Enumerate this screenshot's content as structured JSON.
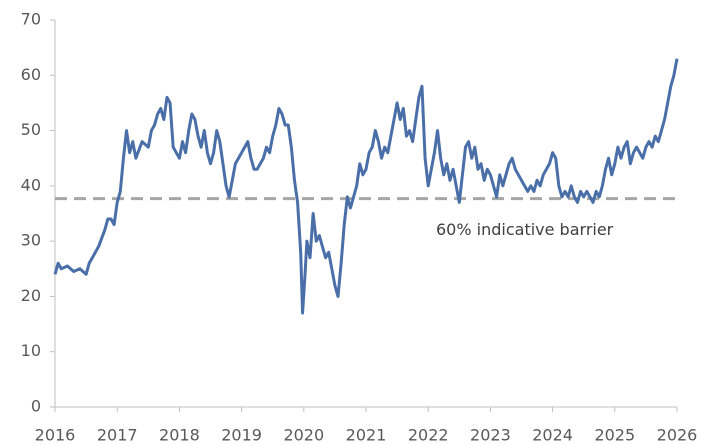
{
  "chart_data": {
    "type": "line",
    "xlim": [
      2016,
      2026
    ],
    "xticks": [
      2016,
      2017,
      2018,
      2019,
      2020,
      2021,
      2022,
      2023,
      2024,
      2025,
      2026
    ],
    "ylim": [
      0,
      70
    ],
    "yticks": [
      0,
      10,
      20,
      30,
      40,
      50,
      60,
      70
    ],
    "reference_line": {
      "value": 37.7,
      "label": "60% indicative barrier",
      "color": "#a6a6a6"
    },
    "x": [
      2016.0,
      2016.05,
      2016.1,
      2016.2,
      2016.3,
      2016.4,
      2016.5,
      2016.55,
      2016.6,
      2016.7,
      2016.8,
      2016.85,
      2016.9,
      2016.95,
      2017.0,
      2017.05,
      2017.1,
      2017.15,
      2017.2,
      2017.25,
      2017.3,
      2017.4,
      2017.5,
      2017.55,
      2017.6,
      2017.65,
      2017.7,
      2017.75,
      2017.8,
      2017.85,
      2017.9,
      2017.95,
      2018.0,
      2018.05,
      2018.1,
      2018.15,
      2018.2,
      2018.25,
      2018.3,
      2018.35,
      2018.4,
      2018.45,
      2018.5,
      2018.55,
      2018.6,
      2018.65,
      2018.7,
      2018.75,
      2018.8,
      2018.85,
      2018.9,
      2018.95,
      2019.0,
      2019.05,
      2019.1,
      2019.15,
      2019.2,
      2019.25,
      2019.3,
      2019.35,
      2019.4,
      2019.45,
      2019.5,
      2019.55,
      2019.6,
      2019.65,
      2019.7,
      2019.75,
      2019.8,
      2019.85,
      2019.9,
      2019.95,
      2019.98,
      2020.02,
      2020.05,
      2020.1,
      2020.15,
      2020.2,
      2020.25,
      2020.3,
      2020.35,
      2020.4,
      2020.45,
      2020.5,
      2020.55,
      2020.6,
      2020.65,
      2020.7,
      2020.75,
      2020.8,
      2020.85,
      2020.9,
      2020.95,
      2021.0,
      2021.05,
      2021.1,
      2021.15,
      2021.2,
      2021.25,
      2021.3,
      2021.35,
      2021.4,
      2021.45,
      2021.5,
      2021.55,
      2021.6,
      2021.65,
      2021.7,
      2021.75,
      2021.8,
      2021.85,
      2021.9,
      2021.95,
      2022.0,
      2022.05,
      2022.1,
      2022.15,
      2022.2,
      2022.25,
      2022.3,
      2022.35,
      2022.4,
      2022.45,
      2022.5,
      2022.55,
      2022.6,
      2022.65,
      2022.7,
      2022.75,
      2022.8,
      2022.85,
      2022.9,
      2022.95,
      2023.0,
      2023.05,
      2023.1,
      2023.15,
      2023.2,
      2023.25,
      2023.3,
      2023.35,
      2023.4,
      2023.45,
      2023.5,
      2023.55,
      2023.6,
      2023.65,
      2023.7,
      2023.75,
      2023.8,
      2023.85,
      2023.9,
      2023.95,
      2024.0,
      2024.05,
      2024.1,
      2024.15,
      2024.2,
      2024.25,
      2024.3,
      2024.35,
      2024.4,
      2024.45,
      2024.5,
      2024.55,
      2024.6,
      2024.65,
      2024.7,
      2024.75,
      2024.8,
      2024.85,
      2024.9,
      2024.95,
      2025.0,
      2025.05,
      2025.1,
      2025.15,
      2025.2,
      2025.25,
      2025.3,
      2025.35,
      2025.4,
      2025.45,
      2025.5,
      2025.55,
      2025.6,
      2025.65,
      2025.7,
      2025.75,
      2025.8,
      2025.85,
      2025.9,
      2025.95,
      2026.0
    ],
    "series": [
      {
        "color": "#4a6fa8",
        "values": [
          24,
          26,
          25,
          25.5,
          24.5,
          25,
          24,
          26,
          27,
          29,
          32,
          34,
          34,
          33,
          37,
          39,
          45,
          50,
          46,
          48,
          45,
          48,
          47,
          50,
          51,
          53,
          54,
          52,
          56,
          55,
          47,
          46,
          45,
          48,
          46,
          50,
          53,
          52,
          49,
          47,
          50,
          46,
          44,
          46,
          50,
          48,
          44,
          40,
          38,
          41,
          44,
          45,
          46,
          47,
          48,
          45,
          43,
          43,
          44,
          45,
          47,
          46,
          49,
          51,
          54,
          53,
          51,
          51,
          47,
          41,
          37,
          28,
          17,
          24,
          30,
          27,
          35,
          30,
          31,
          29,
          27,
          28,
          25,
          22,
          20,
          26,
          33,
          38,
          36,
          38,
          40,
          44,
          42,
          43,
          46,
          47,
          50,
          48,
          45,
          47,
          46,
          49,
          52,
          55,
          52,
          54,
          49,
          50,
          48,
          52,
          56,
          58,
          45,
          40,
          43,
          46,
          50,
          45,
          42,
          44,
          41,
          43,
          40,
          37,
          42,
          47,
          48,
          45,
          47,
          43,
          44,
          41,
          43,
          42,
          40,
          38,
          42,
          40,
          42,
          44,
          45,
          43,
          42,
          41,
          40,
          39,
          40,
          39,
          41,
          40,
          42,
          43,
          44,
          46,
          45,
          40,
          38,
          39,
          38,
          40,
          38,
          37,
          39,
          38,
          39,
          38,
          37,
          39,
          38,
          40,
          43,
          45,
          42,
          44,
          47,
          45,
          47,
          48,
          44,
          46,
          47,
          46,
          45,
          47,
          48,
          47,
          49,
          48,
          50,
          52,
          55,
          58,
          60,
          63
        ]
      }
    ]
  }
}
